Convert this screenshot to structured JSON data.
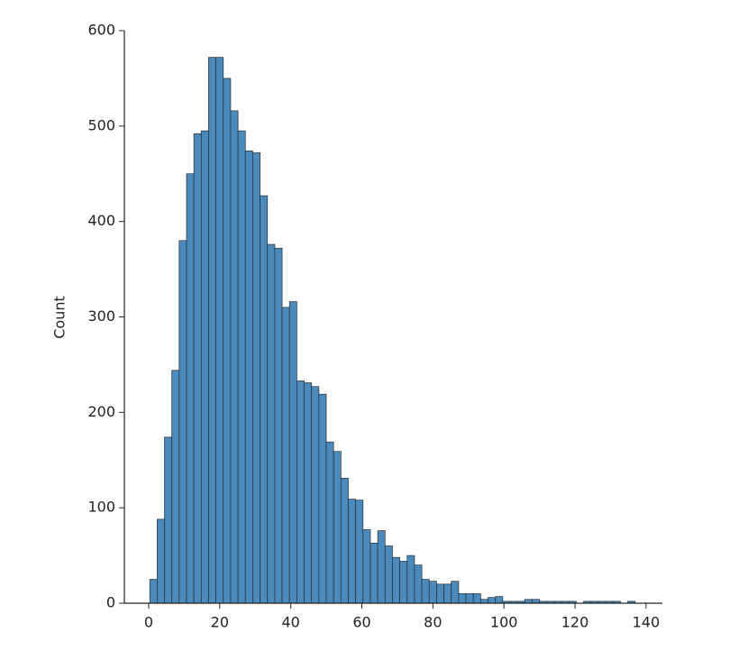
{
  "chart_data": {
    "type": "histogram",
    "ylabel": "Count",
    "color": "#4a8bbf",
    "bins": [
      0.3,
      2.37,
      4.44,
      6.51,
      8.58,
      10.65,
      12.72,
      14.79,
      16.86,
      18.93,
      21.0,
      23.07,
      25.14,
      27.21,
      29.28,
      31.35,
      33.42,
      35.49,
      37.56,
      39.63,
      41.7,
      43.77,
      45.84,
      47.91,
      49.98,
      52.05,
      54.12,
      56.19,
      58.26,
      60.33,
      62.4,
      64.47,
      66.54,
      68.61,
      70.68,
      72.75,
      74.82,
      76.89,
      78.96,
      81.03,
      83.1,
      85.17,
      87.24,
      89.31,
      91.38,
      93.45,
      95.52,
      97.59,
      99.66,
      101.73,
      103.8,
      105.87,
      107.94,
      110.01,
      112.08,
      114.15,
      116.22,
      118.29,
      120.36,
      122.43,
      124.5,
      126.57,
      128.64,
      130.71,
      132.78,
      134.85,
      136.92
    ],
    "values": [
      25,
      88,
      174,
      244,
      380,
      450,
      492,
      495,
      572,
      572,
      550,
      516,
      495,
      474,
      472,
      427,
      376,
      372,
      310,
      316,
      233,
      231,
      227,
      219,
      169,
      159,
      131,
      109,
      108,
      77,
      63,
      76,
      60,
      48,
      44,
      50,
      40,
      25,
      23,
      20,
      20,
      23,
      10,
      10,
      10,
      4,
      6,
      7,
      2,
      2,
      2,
      4,
      4,
      2,
      2,
      2,
      2,
      2,
      0,
      2,
      2,
      2,
      2,
      2,
      0,
      2
    ],
    "xlim": [
      -6.85,
      144.6
    ],
    "ylim": [
      0,
      600
    ],
    "xticks": [
      0,
      20,
      40,
      60,
      80,
      100,
      120,
      140
    ],
    "yticks": [
      0,
      100,
      200,
      300,
      400,
      500,
      600
    ]
  }
}
